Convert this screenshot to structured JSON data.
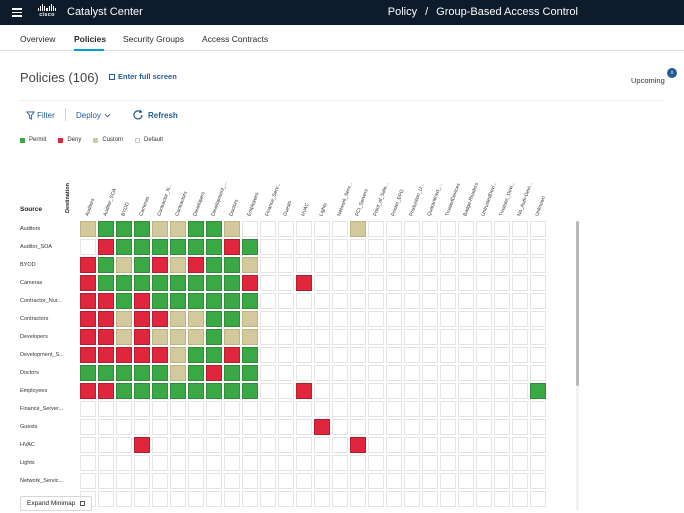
{
  "app": {
    "title": "Catalyst Center",
    "logo_text": "cisco"
  },
  "breadcrumb": {
    "parent": "Policy",
    "separator": "/",
    "current": "Group-Based Access Control"
  },
  "tabs": [
    {
      "label": "Overview"
    },
    {
      "label": "Policies"
    },
    {
      "label": "Security Groups"
    },
    {
      "label": "Access Contracts"
    }
  ],
  "active_tab": "Policies",
  "page": {
    "title": "Policies (106)",
    "full_screen_label": "Enter full screen",
    "upcoming_label": "Upcoming",
    "upcoming_badge": "0"
  },
  "toolbar": {
    "filter_label": "Filter",
    "deploy_label": "Deploy",
    "refresh_label": "Refresh"
  },
  "legend": [
    {
      "label": "Permit",
      "color": "#3aa845"
    },
    {
      "label": "Deny",
      "color": "#e0263c"
    },
    {
      "label": "Custom",
      "color": "#d2ca9d"
    },
    {
      "label": "Default",
      "color": "#ffffff"
    }
  ],
  "matrix": {
    "destination_label": "Destination",
    "source_label": "Source",
    "columns": [
      "Auditors",
      "Auditor_SOA",
      "BYOD",
      "Cameras",
      "Contractor_N...",
      "Contractors",
      "Developers",
      "Development_...",
      "Doctors",
      "Employees",
      "Finance_Serv...",
      "Guests",
      "HVAC",
      "Lights",
      "Network_Serv...",
      "PCI_Servers",
      "Point_of_Sale...",
      "Printer_EPG",
      "Production_U...",
      "Quarantined_...",
      "TrustedDevices",
      "Badge-Readers",
      "UntrustedDevi...",
      "Trustsec_Devi...",
      "No_Auth-Devi...",
      "Unknown"
    ],
    "rows": [
      {
        "label": "Auditors",
        "cells": [
          "C",
          "P",
          "P",
          "P",
          "C",
          "C",
          "P",
          "P",
          "C",
          "",
          "",
          "",
          "",
          "",
          "",
          "C",
          "",
          "",
          "",
          "",
          "",
          "",
          "",
          "",
          "",
          ""
        ]
      },
      {
        "label": "Auditor_SOA",
        "cells": [
          "",
          "D",
          "P",
          "P",
          "P",
          "P",
          "P",
          "P",
          "D",
          "P",
          "",
          "",
          "",
          "",
          "",
          "",
          "",
          "",
          "",
          "",
          "",
          "",
          "",
          "",
          "",
          ""
        ]
      },
      {
        "label": "BYOD",
        "cells": [
          "D",
          "P",
          "C",
          "P",
          "D",
          "C",
          "D",
          "P",
          "P",
          "C",
          "",
          "",
          "",
          "",
          "",
          "",
          "",
          "",
          "",
          "",
          "",
          "",
          "",
          "",
          "",
          ""
        ]
      },
      {
        "label": "Cameras",
        "cells": [
          "D",
          "P",
          "P",
          "P",
          "P",
          "P",
          "P",
          "P",
          "P",
          "D",
          "",
          "",
          "D",
          "",
          "",
          "",
          "",
          "",
          "",
          "",
          "",
          "",
          "",
          "",
          "",
          ""
        ]
      },
      {
        "label": "Contractor_Nur...",
        "cells": [
          "D",
          "D",
          "P",
          "D",
          "P",
          "P",
          "P",
          "P",
          "P",
          "P",
          "",
          "",
          "",
          "",
          "",
          "",
          "",
          "",
          "",
          "",
          "",
          "",
          "",
          "",
          "",
          ""
        ]
      },
      {
        "label": "Contractors",
        "cells": [
          "D",
          "D",
          "C",
          "D",
          "D",
          "C",
          "C",
          "P",
          "P",
          "C",
          "",
          "",
          "",
          "",
          "",
          "",
          "",
          "",
          "",
          "",
          "",
          "",
          "",
          "",
          "",
          ""
        ]
      },
      {
        "label": "Developers",
        "cells": [
          "D",
          "D",
          "C",
          "D",
          "C",
          "C",
          "C",
          "P",
          "C",
          "C",
          "",
          "",
          "",
          "",
          "",
          "",
          "",
          "",
          "",
          "",
          "",
          "",
          "",
          "",
          "",
          ""
        ]
      },
      {
        "label": "Development_S...",
        "cells": [
          "D",
          "D",
          "D",
          "D",
          "D",
          "C",
          "P",
          "P",
          "D",
          "P",
          "",
          "",
          "",
          "",
          "",
          "",
          "",
          "",
          "",
          "",
          "",
          "",
          "",
          "",
          "",
          ""
        ]
      },
      {
        "label": "Doctors",
        "cells": [
          "P",
          "P",
          "P",
          "P",
          "P",
          "C",
          "P",
          "D",
          "P",
          "P",
          "",
          "",
          "",
          "",
          "",
          "",
          "",
          "",
          "",
          "",
          "",
          "",
          "",
          "",
          "",
          ""
        ]
      },
      {
        "label": "Employees",
        "cells": [
          "D",
          "D",
          "P",
          "P",
          "P",
          "P",
          "P",
          "P",
          "P",
          "P",
          "",
          "",
          "D",
          "",
          "",
          "",
          "",
          "",
          "",
          "",
          "",
          "",
          "",
          "",
          "",
          "P"
        ]
      },
      {
        "label": "Finance_Server...",
        "cells": [
          "",
          "",
          "",
          "",
          "",
          "",
          "",
          "",
          "",
          "",
          "",
          "",
          "",
          "",
          "",
          "",
          "",
          "",
          "",
          "",
          "",
          "",
          "",
          "",
          "",
          ""
        ]
      },
      {
        "label": "Guests",
        "cells": [
          "",
          "",
          "",
          "",
          "",
          "",
          "",
          "",
          "",
          "",
          "",
          "",
          "",
          "D",
          "",
          "",
          "",
          "",
          "",
          "",
          "",
          "",
          "",
          "",
          "",
          ""
        ]
      },
      {
        "label": "HVAC",
        "cells": [
          "",
          "",
          "",
          "D",
          "",
          "",
          "",
          "",
          "",
          "",
          "",
          "",
          "",
          "",
          "",
          "D",
          "",
          "",
          "",
          "",
          "",
          "",
          "",
          "",
          "",
          ""
        ]
      },
      {
        "label": "Lights",
        "cells": [
          "",
          "",
          "",
          "",
          "",
          "",
          "",
          "",
          "",
          "",
          "",
          "",
          "",
          "",
          "",
          "",
          "",
          "",
          "",
          "",
          "",
          "",
          "",
          "",
          "",
          ""
        ]
      },
      {
        "label": "Network_Servic...",
        "cells": [
          "",
          "",
          "",
          "",
          "",
          "",
          "",
          "",
          "",
          "",
          "",
          "",
          "",
          "",
          "",
          "",
          "",
          "",
          "",
          "",
          "",
          "",
          "",
          "",
          "",
          ""
        ]
      },
      {
        "label": "",
        "cells": [
          "",
          "",
          "",
          "",
          "",
          "",
          "",
          "",
          "",
          "",
          "",
          "",
          "",
          "",
          "",
          "",
          "",
          "",
          "",
          "",
          "",
          "",
          "",
          "",
          "",
          ""
        ]
      }
    ]
  },
  "minimap": {
    "label": "Expand Minimap"
  }
}
